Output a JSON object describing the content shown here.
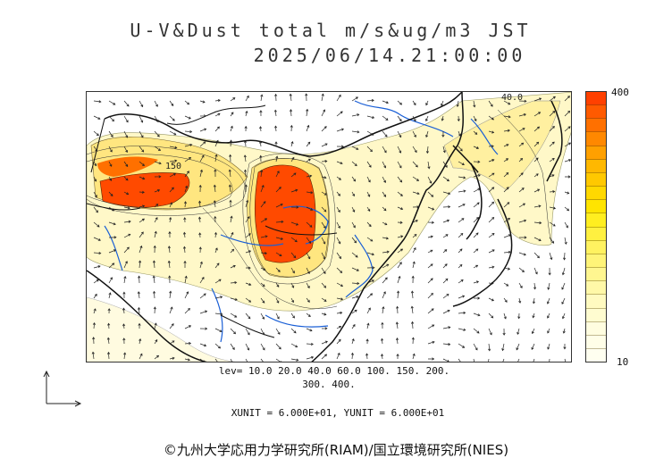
{
  "title": {
    "line1": "U-V&Dust total m/s&ug/m3 JST",
    "line2": "2025/06/14.21:00:00"
  },
  "map": {
    "contour_labels": [
      "150",
      "40.0"
    ]
  },
  "colorbar": {
    "max_label": "400",
    "min_label": "10",
    "colors_top_to_bottom": [
      "#ff4000",
      "#ff5a00",
      "#ff7000",
      "#ff8800",
      "#ffa000",
      "#ffb800",
      "#ffc800",
      "#ffd800",
      "#ffe400",
      "#ffee20",
      "#fff040",
      "#fff260",
      "#fff478",
      "#fff690",
      "#fff8a8",
      "#fffac0",
      "#fffcd0",
      "#fffde0",
      "#fffee8",
      "#fffff0"
    ]
  },
  "levels": {
    "line1": "lev= 10.0 20.0 40.0 60.0 100. 150. 200.",
    "line2": "300. 400."
  },
  "units": {
    "line": "XUNIT = 6.000E+01, YUNIT = 6.000E+01"
  },
  "credit": "©九州大学応用力学研究所(RIAM)/国立環境研究所(NIES)",
  "colors": {
    "dust_high": "#ff4000",
    "dust_mid": "#ffe680",
    "dust_low": "#fff8c8",
    "rivers": "#1a5fd6",
    "coast": "#111111"
  }
}
